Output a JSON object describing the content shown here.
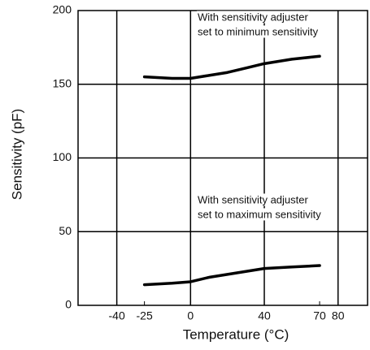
{
  "chart_data": {
    "type": "line",
    "xlabel": "Temperature (°C)",
    "ylabel": "Sensitivity  (pF)",
    "x": [
      -25,
      -10,
      0,
      10,
      20,
      30,
      40,
      55,
      70
    ],
    "series": [
      {
        "color": "#000000",
        "values": [
          155,
          154,
          154,
          156,
          158,
          161,
          164,
          167,
          169
        ]
      },
      {
        "color": "#000000",
        "values": [
          14,
          15,
          16,
          19,
          21,
          23,
          25,
          26,
          27
        ]
      }
    ],
    "annotations": [
      [
        "With sensitivity adjuster",
        "set to minimum sensitivity"
      ],
      [
        "With sensitivity adjuster",
        "set to maximum sensitivity"
      ]
    ],
    "xlim": [
      -61,
      96
    ],
    "ylim": [
      0,
      200
    ],
    "xticks": [
      -40,
      -25,
      0,
      40,
      70,
      80
    ],
    "yticks": [
      0,
      50,
      100,
      150,
      200
    ],
    "xgrid": [
      -40,
      0,
      40,
      80
    ],
    "ygrid": [
      50,
      100,
      150
    ]
  }
}
